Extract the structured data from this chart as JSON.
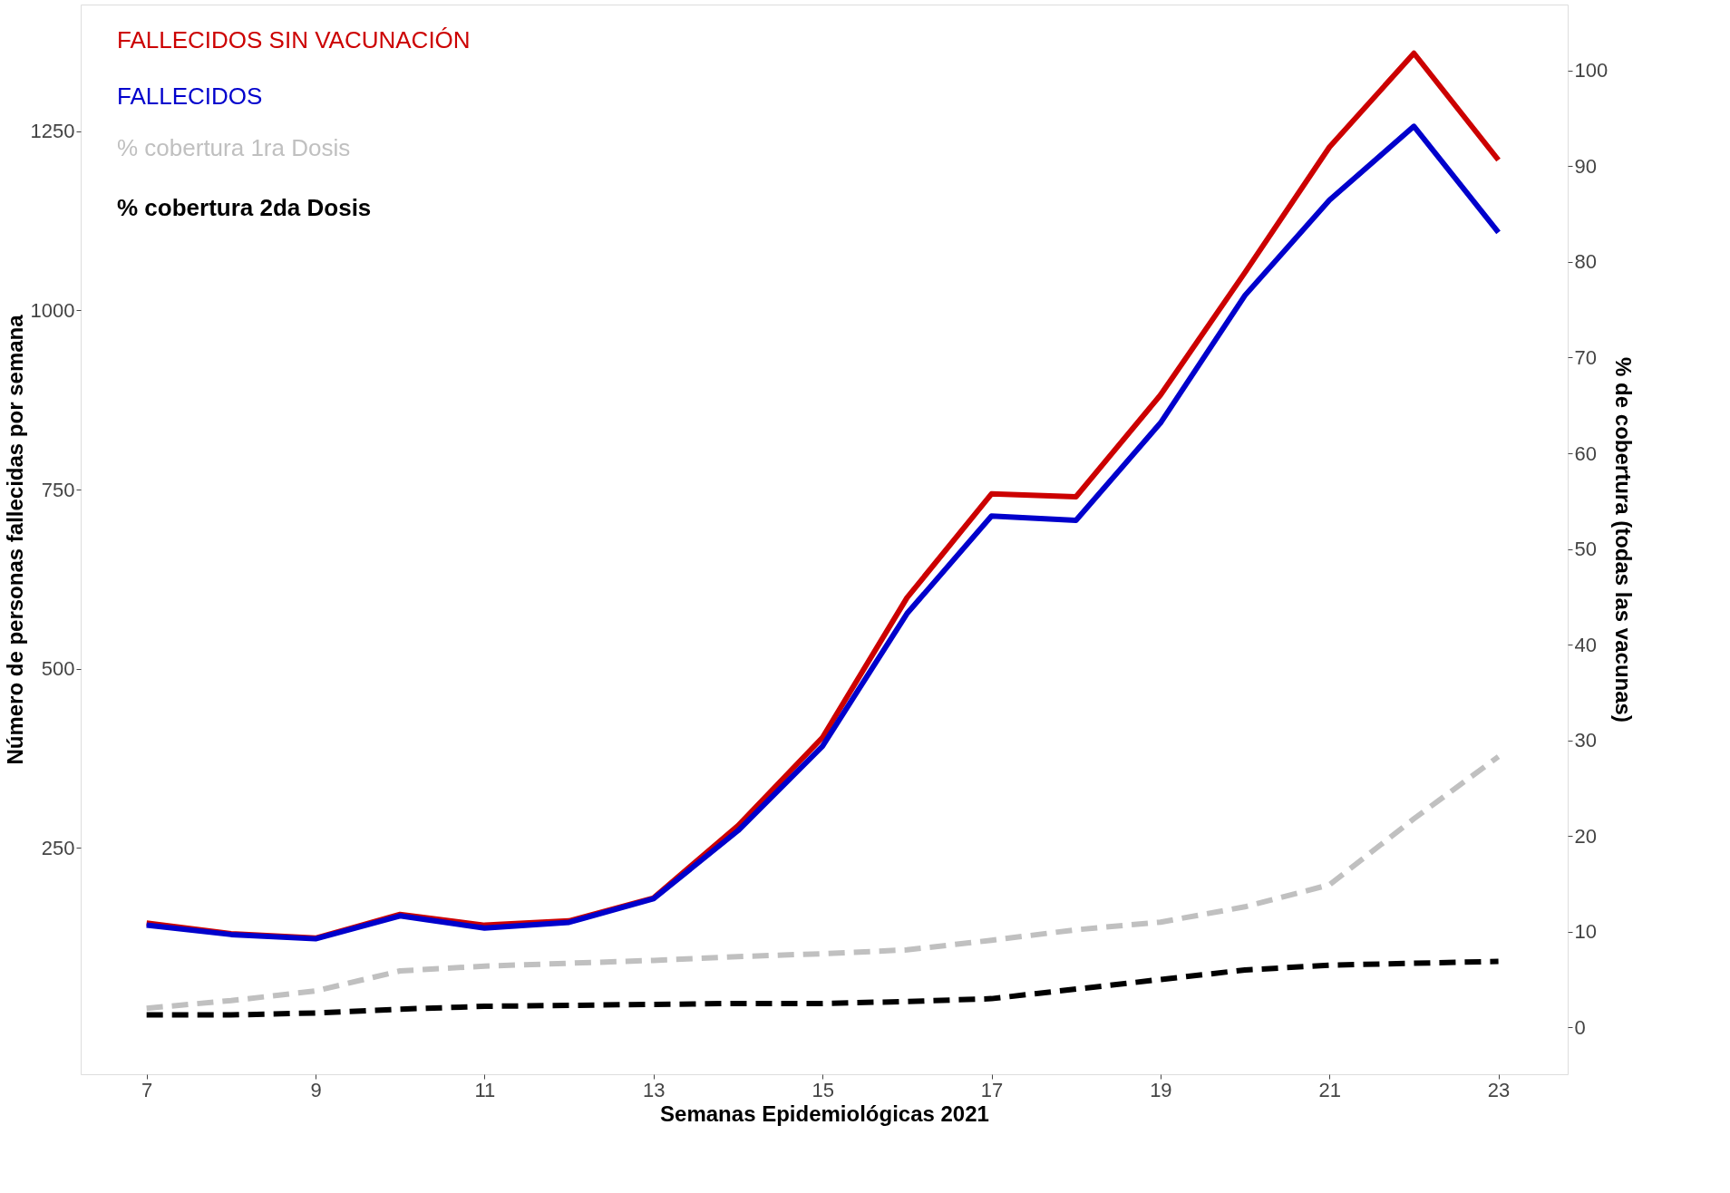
{
  "chart_data": {
    "type": "line",
    "xlabel": "Semanas Epidemiológicas 2021",
    "ylabel": "Número de personas fallecidas por semana",
    "y2label": "% de cobertura (todas las vacunas)",
    "x": [
      7,
      8,
      9,
      10,
      11,
      12,
      13,
      14,
      15,
      16,
      17,
      18,
      19,
      20,
      21,
      22,
      23
    ],
    "series": [
      {
        "name": "FALLECIDOS SIN VACUNACIÓN",
        "color": "#cc0000",
        "values": [
          145,
          130,
          124,
          157,
          142,
          148,
          180,
          281,
          404,
          599,
          744,
          740,
          882,
          1053,
          1228,
          1359,
          1210
        ]
      },
      {
        "name": "FALLECIDOS",
        "color": "#0000cc",
        "values": [
          142,
          129,
          123,
          155,
          138,
          146,
          179,
          274,
          392,
          577,
          713,
          707,
          843,
          1021,
          1154,
          1257,
          1109
        ]
      },
      {
        "name": "% cobertura 1ra Dosis",
        "color": "#c0c0c0",
        "axis": "y2",
        "line_style": "dashed",
        "values": [
          2.0,
          2.8,
          3.8,
          5.9,
          6.4,
          6.7,
          7.0,
          7.4,
          7.7,
          8.1,
          9.1,
          10.2,
          11.0,
          12.6,
          14.9,
          21.8,
          28.3
        ]
      },
      {
        "name": "% cobertura 2da Dosis",
        "color": "#000000",
        "axis": "y2",
        "line_style": "dashed",
        "values": [
          1.3,
          1.3,
          1.5,
          1.9,
          2.2,
          2.3,
          2.4,
          2.5,
          2.5,
          2.7,
          3.0,
          4.0,
          5.0,
          6.0,
          6.5,
          6.7,
          6.9
        ]
      }
    ],
    "xlim": [
      6.22,
      23.82
    ],
    "xticks": [
      7,
      9,
      11,
      13,
      15,
      17,
      19,
      21,
      23
    ],
    "ylim": [
      -66,
      1427
    ],
    "yticks": [
      250,
      500,
      750,
      1000,
      1250
    ],
    "y2lim": [
      -4.9,
      106.9
    ],
    "y2ticks": [
      0,
      10,
      20,
      30,
      40,
      50,
      60,
      70,
      80,
      90,
      100
    ],
    "grid": false,
    "legend": "top left",
    "line_style": "solid",
    "marker": "none"
  }
}
